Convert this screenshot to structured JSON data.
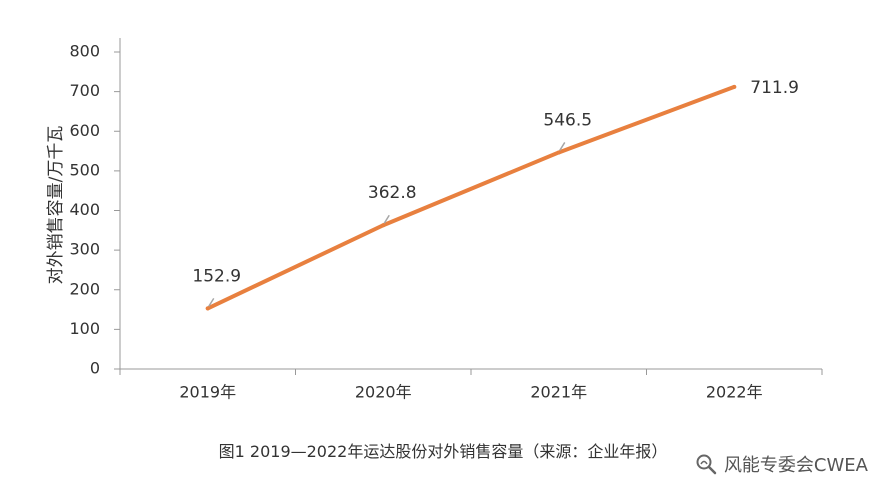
{
  "chart_data": {
    "type": "line",
    "categories": [
      "2019年",
      "2020年",
      "2021年",
      "2022年"
    ],
    "series": [
      {
        "values": [
          152.9,
          362.8,
          546.5,
          711.9
        ],
        "data_labels": [
          "152.9",
          "362.8",
          "546.5",
          "711.9"
        ]
      }
    ],
    "ylabel": "对外销售容量/万千瓦",
    "xlabel": "",
    "ylim": [
      0,
      800
    ],
    "yticks": [
      0,
      100,
      200,
      300,
      400,
      500,
      600,
      700,
      800
    ],
    "grid": false,
    "legend": "none"
  },
  "caption": "图1 2019—2022年运达股份对外销售容量（来源：企业年报）",
  "watermark": "风能专委会CWEA",
  "colors": {
    "line": "#E8803F",
    "axis": "#999999",
    "text": "#333333",
    "leader": "#A6A6A6"
  }
}
